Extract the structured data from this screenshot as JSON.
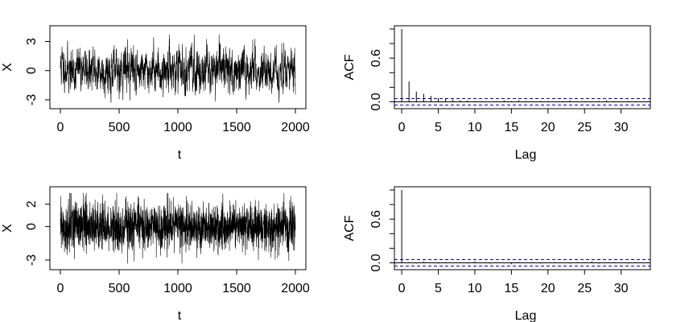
{
  "chart_data": [
    {
      "type": "line",
      "panel": "top-left",
      "xlabel": "t",
      "ylabel": "X",
      "xlim": [
        0,
        2000
      ],
      "ylim": [
        -3.5,
        4.2
      ],
      "xticks": [
        "0",
        "500",
        "1000",
        "1500",
        "2000"
      ],
      "yticks": [
        "-3",
        "0",
        "3"
      ],
      "n_points": 2000,
      "series_color": "#000000",
      "x": [
        0,
        50,
        100,
        150,
        200,
        250,
        300,
        350,
        400,
        450,
        500,
        550,
        600,
        650,
        700,
        750,
        800,
        850,
        900,
        950,
        1000,
        1050,
        1100,
        1150,
        1200,
        1250,
        1300,
        1350,
        1400,
        1450,
        1500,
        1550,
        1600,
        1650,
        1700,
        1750,
        1800,
        1850,
        1900,
        1950,
        2000
      ],
      "y": [
        1.2,
        0.8,
        -0.6,
        0.4,
        1.0,
        -0.8,
        0.2,
        -0.5,
        0.6,
        -0.9,
        0.3,
        1.2,
        0.9,
        -0.4,
        0.6,
        -0.2,
        0.8,
        -0.7,
        0.5,
        1.1,
        -0.3,
        0.4,
        0.9,
        -0.6,
        0.2,
        0.7,
        -0.5,
        0.3,
        1.4,
        0.8,
        -0.9,
        -0.6,
        0.5,
        0.2,
        -0.4,
        0.6,
        0.3,
        -0.8,
        0.4,
        -0.5,
        0.1
      ],
      "ymax": 3.7,
      "ymin": -3.3
    },
    {
      "type": "bar",
      "panel": "top-right",
      "xlabel": "Lag",
      "ylabel": "ACF",
      "xlim": [
        -1,
        34
      ],
      "ylim": [
        -0.05,
        1.0
      ],
      "xticks": [
        "0",
        "5",
        "10",
        "15",
        "20",
        "25",
        "30"
      ],
      "yticks": [
        "0.0",
        "0.6"
      ],
      "lags": [
        0,
        1,
        2,
        3,
        4,
        5,
        6,
        7,
        8,
        9,
        10,
        11,
        12,
        13,
        14,
        15,
        16,
        17,
        18,
        19,
        20,
        21,
        22,
        23,
        24,
        25,
        26,
        27,
        28,
        29,
        30,
        31,
        32,
        33
      ],
      "values": [
        1.0,
        0.28,
        0.14,
        0.11,
        0.08,
        0.05,
        0.04,
        0.03,
        0.02,
        0.02,
        0.01,
        0.01,
        0.0,
        0.01,
        0.02,
        0.01,
        0.02,
        0.01,
        0.0,
        0.01,
        0.01,
        0.0,
        0.01,
        0.02,
        0.01,
        0.01,
        0.0,
        0.01,
        0.02,
        0.01,
        0.0,
        0.01,
        0.01,
        0.0
      ],
      "conf_band": 0.044,
      "conf_color": "#0000cc"
    },
    {
      "type": "line",
      "panel": "bottom-left",
      "xlabel": "t",
      "ylabel": "X",
      "xlim": [
        0,
        2000
      ],
      "ylim": [
        -3.5,
        3.2
      ],
      "xticks": [
        "0",
        "500",
        "1000",
        "1500",
        "2000"
      ],
      "yticks": [
        "-3",
        "0",
        "2"
      ],
      "n_points": 2000,
      "series_color": "#000000",
      "x": [
        0,
        50,
        100,
        150,
        200,
        250,
        300,
        350,
        400,
        450,
        500,
        550,
        600,
        650,
        700,
        750,
        800,
        850,
        900,
        950,
        1000,
        1050,
        1100,
        1150,
        1200,
        1250,
        1300,
        1350,
        1400,
        1450,
        1500,
        1550,
        1600,
        1650,
        1700,
        1750,
        1800,
        1850,
        1900,
        1950,
        2000
      ],
      "y": [
        0.3,
        -0.4,
        0.6,
        -0.2,
        0.5,
        0.1,
        -0.6,
        0.4,
        -0.3,
        0.7,
        -0.5,
        0.2,
        -0.1,
        0.6,
        -0.4,
        0.3,
        0.0,
        -0.5,
        0.4,
        -0.2,
        0.6,
        -0.7,
        0.3,
        0.1,
        -0.4,
        0.5,
        -0.2,
        0.3,
        -0.6,
        0.4,
        0.2,
        -0.3,
        0.5,
        -0.1,
        0.4,
        -0.5,
        0.2,
        0.6,
        -0.3,
        0.1,
        -0.2
      ],
      "ymax": 3.0,
      "ymin": -3.3
    },
    {
      "type": "bar",
      "panel": "bottom-right",
      "xlabel": "Lag",
      "ylabel": "ACF",
      "xlim": [
        -1,
        34
      ],
      "ylim": [
        -0.05,
        1.0
      ],
      "xticks": [
        "0",
        "5",
        "10",
        "15",
        "20",
        "25",
        "30"
      ],
      "yticks": [
        "0.0",
        "0.6"
      ],
      "lags": [
        0,
        1,
        2,
        3,
        4,
        5,
        6,
        7,
        8,
        9,
        10,
        11,
        12,
        13,
        14,
        15,
        16,
        17,
        18,
        19,
        20,
        21,
        22,
        23,
        24,
        25,
        26,
        27,
        28,
        29,
        30,
        31,
        32,
        33
      ],
      "values": [
        1.0,
        0.01,
        -0.01,
        0.02,
        0.0,
        -0.01,
        0.01,
        0.0,
        0.01,
        -0.01,
        0.02,
        0.0,
        -0.01,
        0.01,
        0.0,
        -0.02,
        0.01,
        0.0,
        0.01,
        -0.01,
        0.0,
        0.01,
        0.0,
        -0.01,
        0.01,
        0.0,
        0.02,
        -0.01,
        0.0,
        0.01,
        0.0,
        -0.01,
        0.01,
        0.0
      ],
      "conf_band": 0.044,
      "conf_color": "#0000cc"
    }
  ]
}
